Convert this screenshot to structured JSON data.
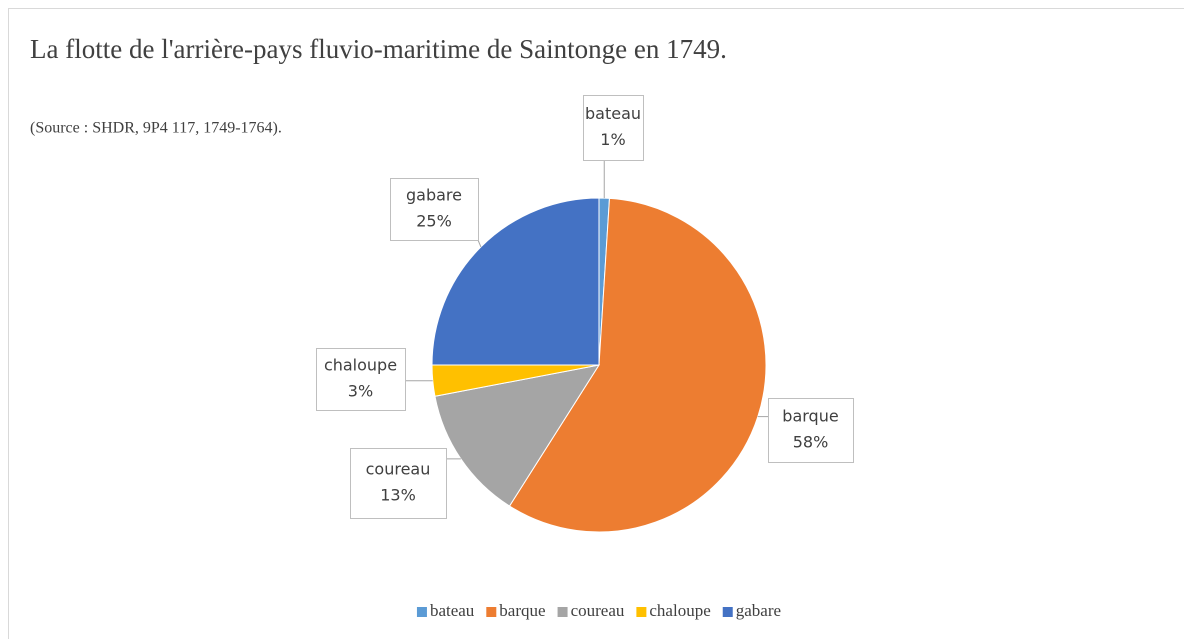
{
  "chart_data": {
    "type": "pie",
    "title": "La flotte de l'arrière-pays fluvio-maritime de Saintonge en 1749.",
    "subtitle": "(Source : SHDR, 9P4 117, 1749-1764).",
    "categories": [
      "bateau",
      "barque",
      "coureau",
      "chaloupe",
      "gabare"
    ],
    "values": [
      1,
      58,
      13,
      3,
      25
    ],
    "value_labels": [
      "1%",
      "58%",
      "13%",
      "3%",
      "25%"
    ],
    "colors": [
      "#5b9bd5",
      "#ed7d31",
      "#a5a5a5",
      "#ffc000",
      "#4472c4"
    ],
    "legend": "bottom"
  }
}
